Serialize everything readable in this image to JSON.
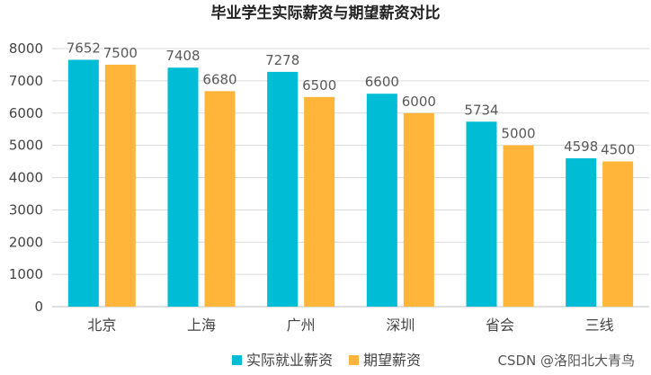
{
  "chart_data": {
    "type": "bar",
    "title": "毕业学生实际薪资与期望薪资对比",
    "categories": [
      "北京",
      "上海",
      "广州",
      "深圳",
      "省会",
      "三线"
    ],
    "series": [
      {
        "name": "实际就业薪资",
        "color": "#00BCD4",
        "values": [
          7652,
          7408,
          7278,
          6600,
          5734,
          4598
        ]
      },
      {
        "name": "期望薪资",
        "color": "#FFB43A",
        "values": [
          7500,
          6680,
          6500,
          6000,
          5000,
          4500
        ]
      }
    ],
    "yticks": [
      "0",
      "1000",
      "2000",
      "3000",
      "4000",
      "5000",
      "6000",
      "7000",
      "8000"
    ],
    "ylim": [
      0,
      8000
    ],
    "grid": true,
    "legend_position": "bottom"
  },
  "watermark": "CSDN @洛阳北大青鸟"
}
